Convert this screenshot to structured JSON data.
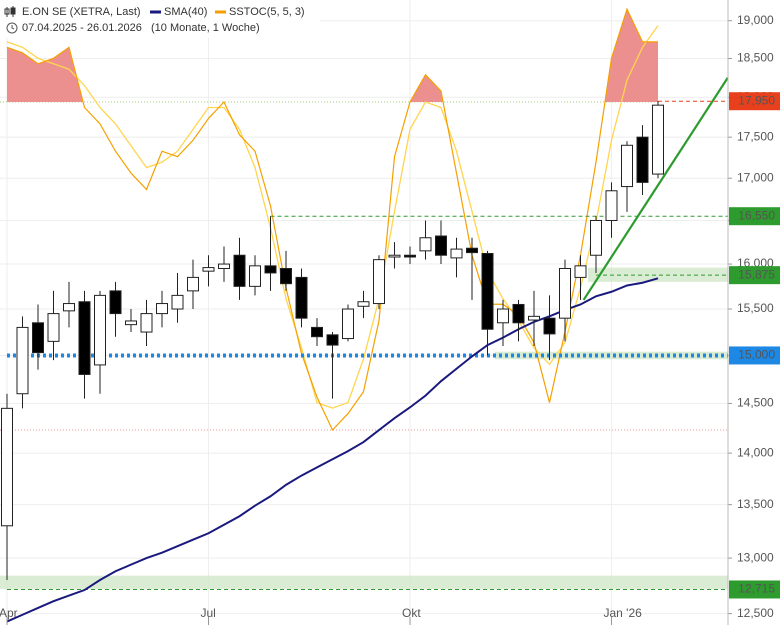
{
  "chart_data": {
    "type": "candlestick",
    "title": "E.ON SE (XETRA, Last)",
    "subtitle": "07.04.2025 - 26.01.2026",
    "period": "(10 Monate, 1 Woche)",
    "categories": [
      "Apr",
      null,
      null,
      null,
      null,
      null,
      null,
      null,
      null,
      null,
      null,
      null,
      null,
      "Jul",
      null,
      null,
      null,
      null,
      null,
      null,
      null,
      null,
      null,
      null,
      null,
      null,
      "Okt",
      null,
      null,
      null,
      null,
      null,
      null,
      null,
      null,
      null,
      null,
      null,
      null,
      "Jan '26",
      null,
      null,
      null
    ],
    "log_scale": true,
    "grid": true,
    "ylim": [
      12400,
      19280
    ],
    "yticks": [
      {
        "value": 12500,
        "label": "12,500"
      },
      {
        "value": 13000,
        "label": "13,000"
      },
      {
        "value": 13500,
        "label": "13,500"
      },
      {
        "value": 14000,
        "label": "14,000"
      },
      {
        "value": 14500,
        "label": "14,500"
      },
      {
        "value": 15000,
        "label": "15,000"
      },
      {
        "value": 15500,
        "label": "15,500"
      },
      {
        "value": 16000,
        "label": "16,000"
      },
      {
        "value": 16500,
        "label": "16,500"
      },
      {
        "value": 17000,
        "label": "17,000"
      },
      {
        "value": 17500,
        "label": "17,500"
      },
      {
        "value": 18000,
        "label": "18,000"
      },
      {
        "value": 18500,
        "label": "18,500"
      },
      {
        "value": 19000,
        "label": "19,000"
      }
    ],
    "series": [
      {
        "name": "E.ON SE (XETRA, Last)",
        "up_color": "#ffffff",
        "down_color": "#000000",
        "open": [
          13300,
          14600,
          15350,
          15150,
          15480,
          15580,
          14900,
          15700,
          15330,
          15250,
          15450,
          15500,
          15700,
          15920,
          15950,
          16100,
          15750,
          15980,
          15950,
          15850,
          15300,
          15220,
          15180,
          15530,
          15560,
          16080,
          16100,
          16150,
          16320,
          16070,
          16180,
          16120,
          15350,
          15550,
          15380,
          15400,
          15400,
          15850,
          16100,
          16500,
          16900,
          17500,
          17050
        ],
        "high": [
          14600,
          15420,
          15550,
          15700,
          15800,
          15700,
          15700,
          15800,
          15500,
          15600,
          15700,
          15900,
          16050,
          16100,
          16200,
          16300,
          16100,
          16550,
          16150,
          15950,
          15400,
          15250,
          15550,
          15700,
          16100,
          16250,
          16200,
          16500,
          16500,
          16300,
          16300,
          16150,
          15600,
          15600,
          15700,
          15650,
          16050,
          16100,
          16550,
          16950,
          17450,
          17650,
          17950
        ],
        "low": [
          12800,
          14450,
          14850,
          14950,
          15300,
          14550,
          14600,
          15200,
          15250,
          15100,
          15300,
          15350,
          15500,
          15750,
          15800,
          15600,
          15650,
          15700,
          15700,
          15300,
          15100,
          14550,
          15150,
          15400,
          15500,
          15950,
          16000,
          16050,
          16000,
          15850,
          15600,
          15000,
          15100,
          15150,
          15100,
          14950,
          15150,
          15600,
          15900,
          16300,
          16600,
          16800,
          17000
        ],
        "close": [
          14450,
          15300,
          15030,
          15450,
          15560,
          14800,
          15650,
          15450,
          15370,
          15450,
          15560,
          15650,
          15850,
          15960,
          16000,
          15750,
          15980,
          15900,
          15780,
          15400,
          15200,
          15110,
          15500,
          15580,
          16050,
          16100,
          16080,
          16300,
          16100,
          16170,
          16130,
          15280,
          15500,
          15350,
          15420,
          15230,
          15950,
          15980,
          16500,
          16850,
          17400,
          16950,
          17900
        ]
      },
      {
        "name": "SMA(40)",
        "color": "#1a1a7e",
        "values": [
          12430,
          12490,
          12550,
          12610,
          12660,
          12710,
          12800,
          12880,
          12940,
          13000,
          13050,
          13110,
          13170,
          13230,
          13310,
          13390,
          13490,
          13580,
          13690,
          13780,
          13860,
          13940,
          14020,
          14110,
          14230,
          14350,
          14460,
          14580,
          14730,
          14860,
          14990,
          15110,
          15190,
          15280,
          15360,
          15420,
          15490,
          15550,
          15640,
          15690,
          15760,
          15790,
          15840
        ]
      },
      {
        "name": "SSTOC(5, 5, 3)",
        "color": "#f5a000",
        "signal_color": "#ffd54f",
        "fill_color": "#ec8f8f",
        "values": [
          90,
          89,
          87,
          88,
          90,
          79,
          76,
          71,
          67,
          64,
          71,
          70,
          73,
          77,
          80,
          74,
          71,
          61,
          46,
          34,
          26,
          20,
          23,
          27,
          40,
          70,
          80,
          85,
          82,
          67,
          52,
          43,
          43,
          41,
          36,
          25,
          38,
          52,
          69,
          88,
          97,
          91,
          91
        ],
        "signal": [
          91,
          90,
          88,
          87,
          86,
          83,
          79,
          76,
          72,
          68,
          69,
          71,
          75,
          79,
          79,
          75,
          68,
          57,
          44,
          35,
          25,
          24,
          25,
          33,
          44,
          60,
          75,
          80,
          79,
          71,
          60,
          49,
          44,
          40,
          35,
          32,
          36,
          46,
          58,
          73,
          84,
          90,
          94
        ]
      }
    ],
    "sstoc_levels": [
      20,
      80
    ],
    "levels": [
      {
        "value": 17950,
        "label": "17,950",
        "color": "#e8401c",
        "from": 42,
        "style": "dashed"
      },
      {
        "value": 16550,
        "label": "16,550",
        "color": "#2e9b2e",
        "from": 17,
        "style": "dashed"
      },
      {
        "value": 15875,
        "label": "15,875",
        "color": "#2e9b2e",
        "from": 38,
        "style": "dashed"
      },
      {
        "value": 15000,
        "label": "15,000",
        "color": "#1e88e5",
        "from": 0,
        "style": "dotted"
      },
      {
        "value": 12715,
        "label": "12,715",
        "color": "#2e9b2e",
        "from": 0,
        "style": "dashed"
      }
    ],
    "zones": [
      {
        "low": 15800,
        "high": 15960,
        "from": 38
      },
      {
        "low": 14960,
        "high": 15040,
        "from": 32
      },
      {
        "low": 12720,
        "high": 12840,
        "from": 0
      }
    ],
    "trendline": {
      "x": [
        37.2,
        46.5
      ],
      "values": [
        15600,
        18250
      ],
      "color": "#2e9b2e"
    }
  }
}
